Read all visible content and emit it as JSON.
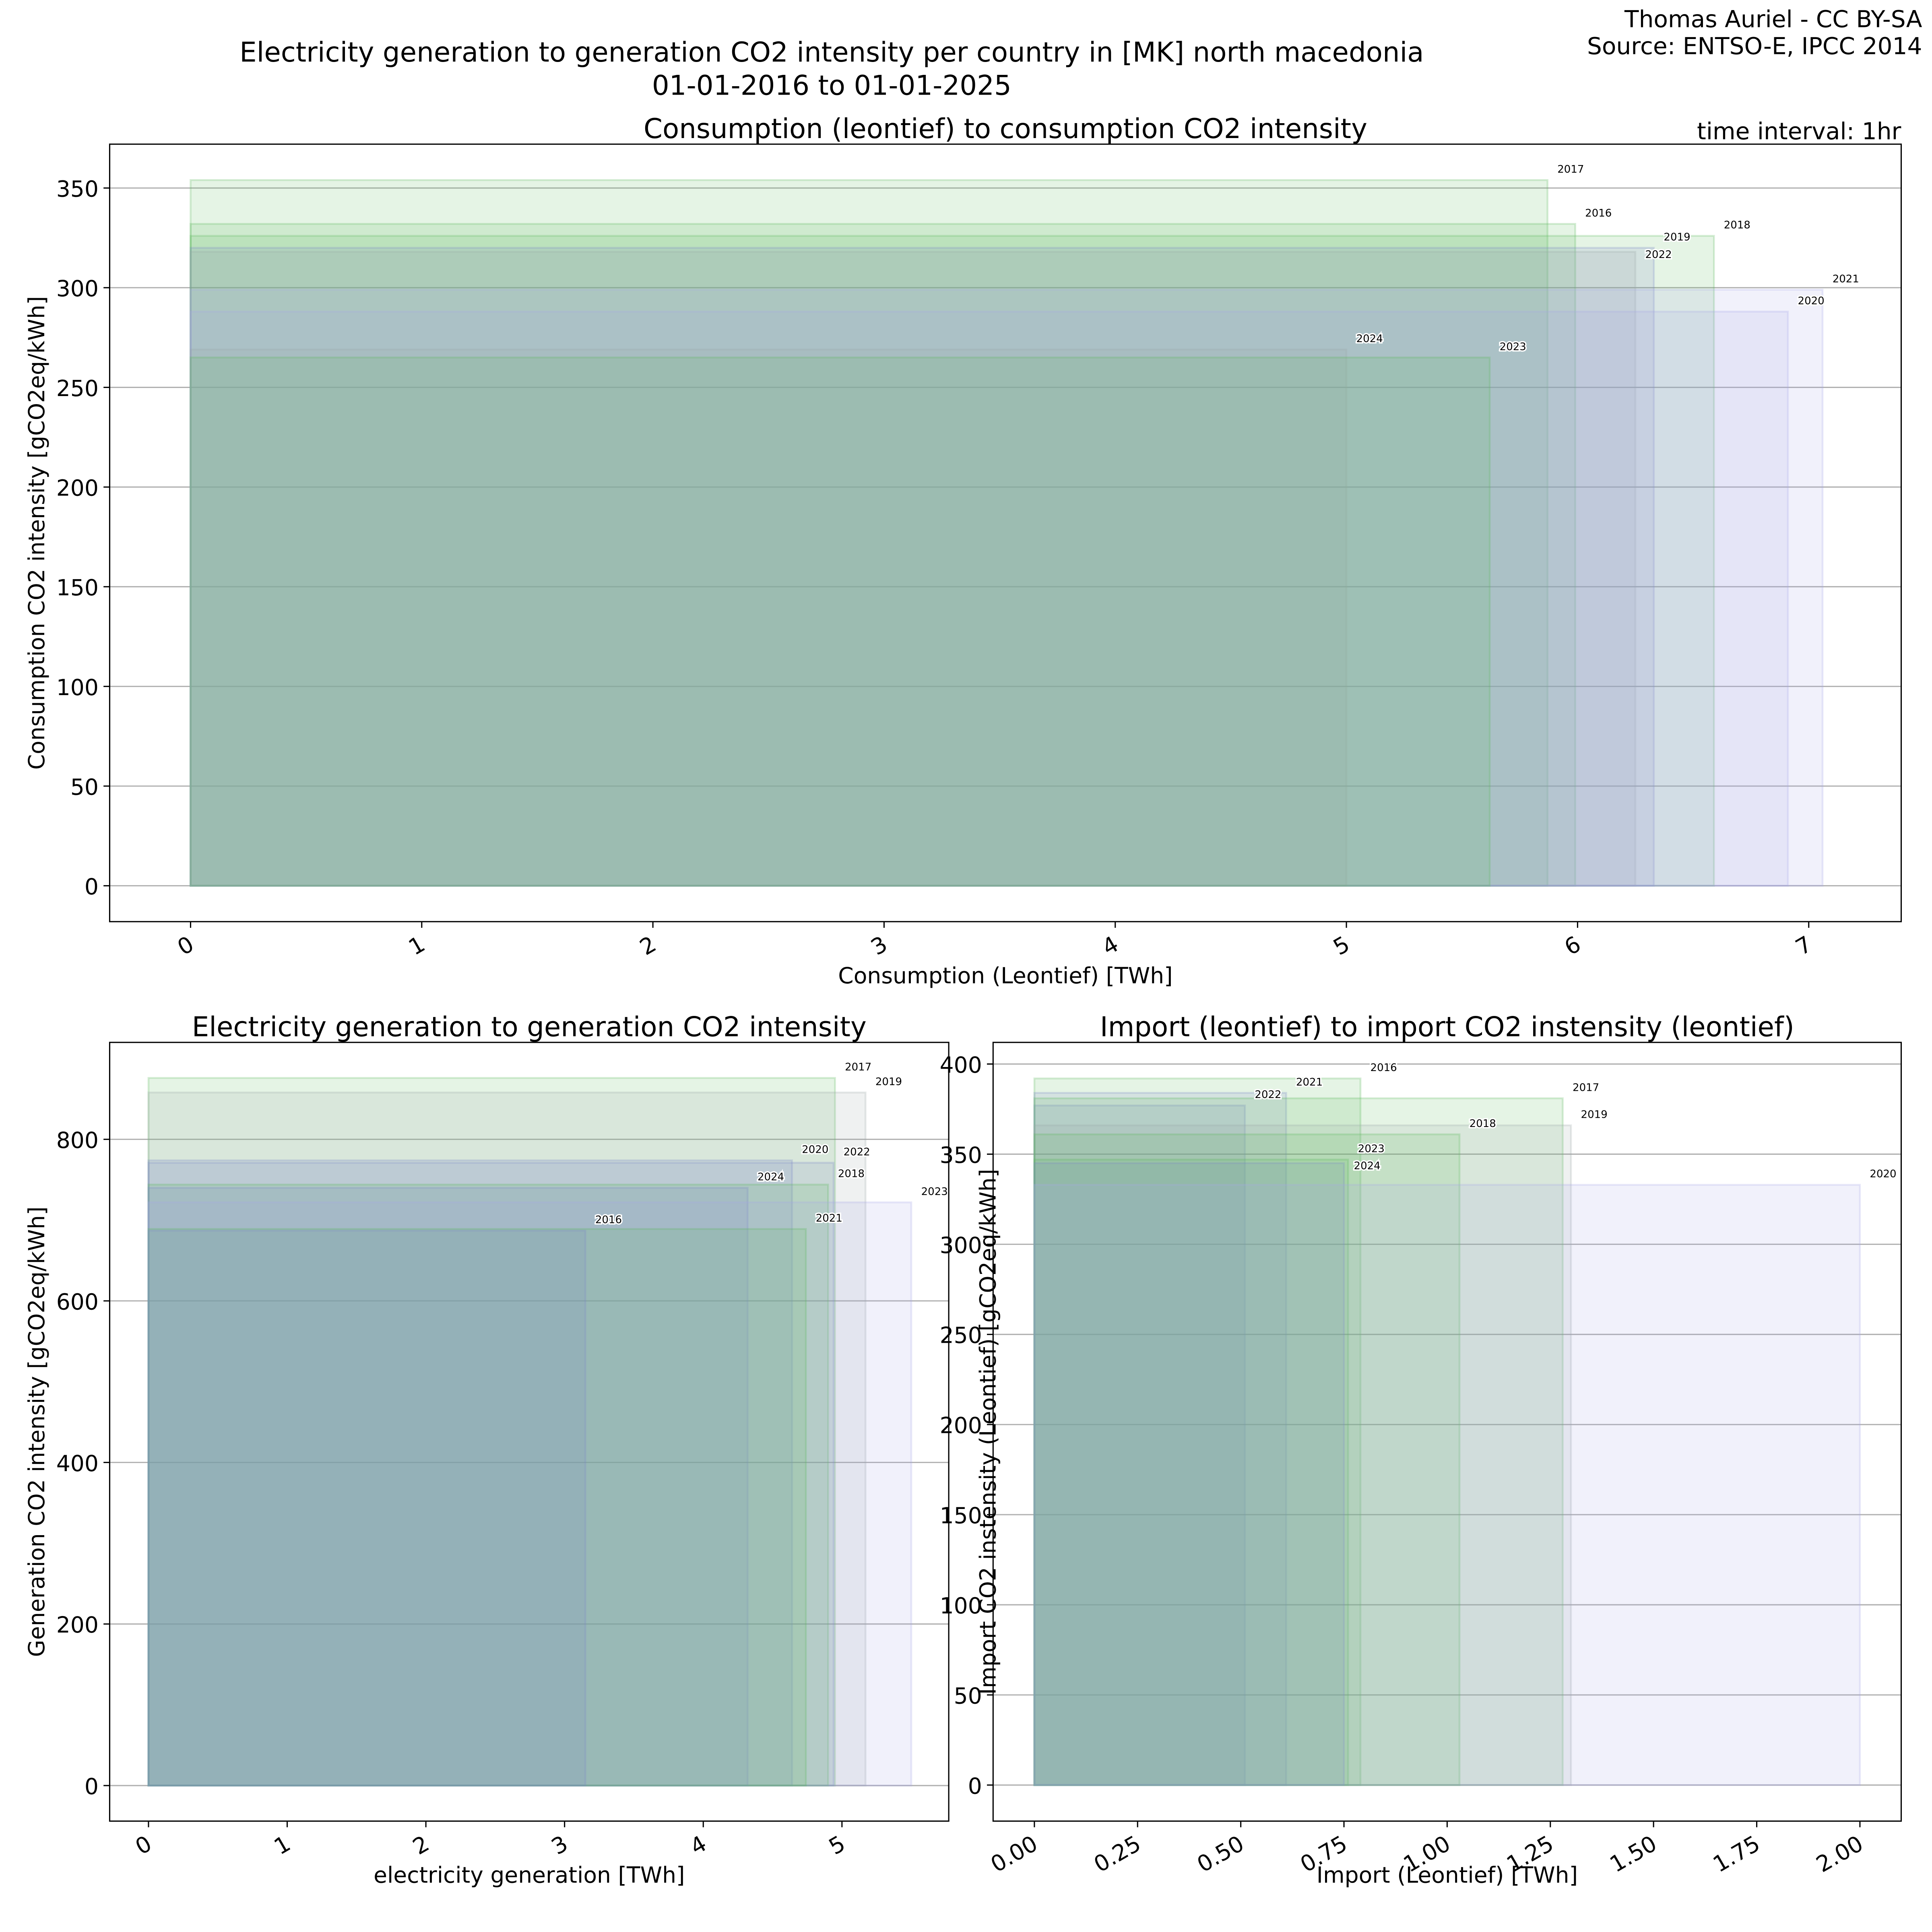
{
  "header": {
    "suptitle_line1": "Electricity generation to generation CO2 intensity per country in [MK] north macedonia",
    "suptitle_line2": "01-01-2016 to 01-01-2025",
    "author": "Thomas Auriel - CC BY-SA",
    "source": "Source: ENTSO-E, IPCC 2014",
    "time_interval": "time interval: 1hr"
  },
  "colors": {
    "green": "#5cb85c",
    "blue": "#7a86c8",
    "lavender": "#a9a9e6",
    "grey": "#9aa6a8"
  },
  "chart_data": [
    {
      "type": "bar",
      "title": "Consumption (leontief) to consumption CO2 intensity",
      "xlabel": "Consumption (Leontief) [TWh]",
      "ylabel": "Consumption CO2 intensity [gCO2eq/kWh]",
      "xlim": [
        -0.35,
        7.4
      ],
      "ylim": [
        -18,
        372
      ],
      "xticks": [
        0,
        1,
        2,
        3,
        4,
        5,
        6,
        7
      ],
      "xtick_labels": [
        "0",
        "1",
        "2",
        "3",
        "4",
        "5",
        "6",
        "7"
      ],
      "yticks": [
        0,
        50,
        100,
        150,
        200,
        250,
        300,
        350
      ],
      "ytick_labels": [
        "0",
        "50",
        "100",
        "150",
        "200",
        "250",
        "300",
        "350"
      ],
      "grid": "y",
      "bars": [
        {
          "year": "2017",
          "x": 5.87,
          "y": 354,
          "color": "green"
        },
        {
          "year": "2016",
          "x": 5.99,
          "y": 332,
          "color": "green"
        },
        {
          "year": "2018",
          "x": 6.59,
          "y": 326,
          "color": "green"
        },
        {
          "year": "2019",
          "x": 6.33,
          "y": 320,
          "color": "blue"
        },
        {
          "year": "2022",
          "x": 6.25,
          "y": 318,
          "color": "grey"
        },
        {
          "year": "2021",
          "x": 7.06,
          "y": 299,
          "color": "lavender"
        },
        {
          "year": "2020",
          "x": 6.91,
          "y": 288,
          "color": "lavender"
        },
        {
          "year": "2024",
          "x": 5.0,
          "y": 269,
          "color": "grey"
        },
        {
          "year": "2023",
          "x": 5.62,
          "y": 265,
          "color": "green"
        }
      ]
    },
    {
      "type": "bar",
      "title": "Electricity generation to generation CO2 intensity",
      "xlabel": "electricity generation [TWh]",
      "ylabel": "Generation CO2 intensity [gCO2eq/kWh]",
      "xlim": [
        -0.28,
        5.77
      ],
      "ylim": [
        -44,
        920
      ],
      "xticks": [
        0,
        1,
        2,
        3,
        4,
        5
      ],
      "xtick_labels": [
        "0",
        "1",
        "2",
        "3",
        "4",
        "5"
      ],
      "yticks": [
        0,
        200,
        400,
        600,
        800
      ],
      "ytick_labels": [
        "0",
        "200",
        "400",
        "600",
        "800"
      ],
      "grid": "y",
      "bars": [
        {
          "year": "2017",
          "x": 4.95,
          "y": 876,
          "color": "green"
        },
        {
          "year": "2019",
          "x": 5.17,
          "y": 858,
          "color": "grey"
        },
        {
          "year": "2020",
          "x": 4.64,
          "y": 774,
          "color": "blue"
        },
        {
          "year": "2022",
          "x": 4.94,
          "y": 771,
          "color": "blue"
        },
        {
          "year": "2018",
          "x": 4.9,
          "y": 744,
          "color": "green"
        },
        {
          "year": "2024",
          "x": 4.32,
          "y": 740,
          "color": "blue"
        },
        {
          "year": "2023",
          "x": 5.5,
          "y": 722,
          "color": "lavender"
        },
        {
          "year": "2021",
          "x": 4.74,
          "y": 689,
          "color": "green"
        },
        {
          "year": "2016",
          "x": 3.15,
          "y": 687,
          "color": "blue"
        }
      ]
    },
    {
      "type": "bar",
      "title": "Import (leontief) to import CO2 instensity (leontief)",
      "xlabel": "Import (Leontief) [TWh]",
      "ylabel": "Import CO2 instensity (Leontief) [gCO2eq/kWh]",
      "xlim": [
        -0.1,
        2.1
      ],
      "ylim": [
        -20,
        412
      ],
      "xticks": [
        0,
        0.25,
        0.5,
        0.75,
        1,
        1.25,
        1.5,
        1.75,
        2
      ],
      "xtick_labels": [
        "0.00",
        "0.25",
        "0.50",
        "0.75",
        "1.00",
        "1.25",
        "1.50",
        "1.75",
        "2.00"
      ],
      "yticks": [
        0,
        50,
        100,
        150,
        200,
        250,
        300,
        350,
        400
      ],
      "ytick_labels": [
        "0",
        "50",
        "100",
        "150",
        "200",
        "250",
        "300",
        "350",
        "400"
      ],
      "grid": "y",
      "bars": [
        {
          "year": "2016",
          "x": 0.79,
          "y": 392,
          "color": "green"
        },
        {
          "year": "2021",
          "x": 0.61,
          "y": 384,
          "color": "blue"
        },
        {
          "year": "2022",
          "x": 0.51,
          "y": 377,
          "color": "blue"
        },
        {
          "year": "2017",
          "x": 1.28,
          "y": 381,
          "color": "green"
        },
        {
          "year": "2019",
          "x": 1.3,
          "y": 366,
          "color": "grey"
        },
        {
          "year": "2018",
          "x": 1.03,
          "y": 361,
          "color": "green"
        },
        {
          "year": "2023",
          "x": 0.76,
          "y": 347,
          "color": "green"
        },
        {
          "year": "2024",
          "x": 0.75,
          "y": 345,
          "color": "blue"
        },
        {
          "year": "2020",
          "x": 2.0,
          "y": 333,
          "color": "lavender"
        }
      ]
    }
  ]
}
